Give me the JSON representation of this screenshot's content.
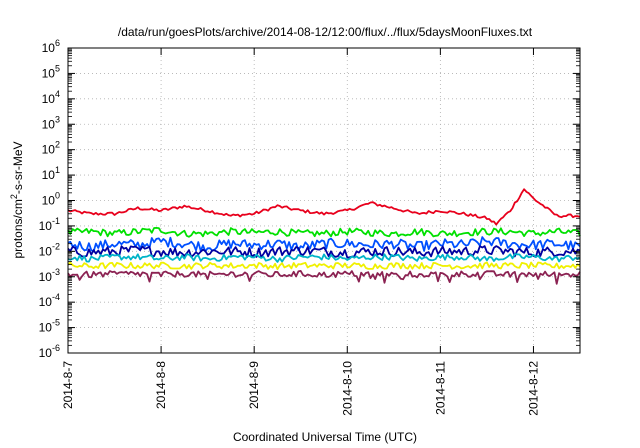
{
  "chart_data": {
    "type": "line",
    "title": "/data/run/goesPlots/archive/2014-08-12/12:00/flux/../flux/5daysMoonFluxes.txt",
    "xlabel": "Coordinated Universal Time (UTC)",
    "ylabel": {
      "prefix": "protons/cm",
      "sup": "2",
      "suffix": "-s-sr-MeV"
    },
    "y_scale": "log",
    "y_exponent_range": [
      -6,
      6
    ],
    "y_ticks": [
      {
        "base": "10",
        "exp": "-6"
      },
      {
        "base": "10",
        "exp": "-5"
      },
      {
        "base": "10",
        "exp": "-4"
      },
      {
        "base": "10",
        "exp": "-3"
      },
      {
        "base": "10",
        "exp": "-2"
      },
      {
        "base": "10",
        "exp": "-1"
      },
      {
        "base": "10",
        "exp": "0"
      },
      {
        "base": "10",
        "exp": "1"
      },
      {
        "base": "10",
        "exp": "2"
      },
      {
        "base": "10",
        "exp": "3"
      },
      {
        "base": "10",
        "exp": "4"
      },
      {
        "base": "10",
        "exp": "5"
      },
      {
        "base": "10",
        "exp": "6"
      }
    ],
    "x_range_days": [
      "2014-08-07",
      "2014-08-12 12:00"
    ],
    "x_ticks": [
      "2014-8-7",
      "2014-8-8",
      "2014-8-9",
      "2014-8-10",
      "2014-8-11",
      "2014-8-12"
    ],
    "grid": true,
    "legend": "none",
    "series": [
      {
        "color": "#e8001c",
        "x_days": [
          0,
          0.25,
          0.5,
          0.75,
          1.0,
          1.25,
          1.5,
          1.75,
          2.0,
          2.25,
          2.5,
          2.75,
          3.0,
          3.25,
          3.5,
          3.75,
          4.0,
          4.25,
          4.5,
          4.6,
          4.75,
          4.9,
          5.0,
          5.25,
          5.5
        ],
        "values": [
          0.4,
          0.3,
          0.3,
          0.5,
          0.4,
          0.6,
          0.4,
          0.25,
          0.3,
          0.6,
          0.4,
          0.3,
          0.4,
          0.8,
          0.5,
          0.3,
          0.4,
          0.3,
          0.2,
          0.12,
          0.4,
          2.8,
          1.2,
          0.25,
          0.25
        ]
      },
      {
        "color": "#00e000",
        "x_days": [
          0,
          0.25,
          0.5,
          0.75,
          1.0,
          1.25,
          1.5,
          1.75,
          2.0,
          2.25,
          2.5,
          2.75,
          3.0,
          3.25,
          3.5,
          3.75,
          4.0,
          4.25,
          4.5,
          4.75,
          5.0,
          5.25,
          5.5
        ],
        "values": [
          0.055,
          0.06,
          0.05,
          0.06,
          0.07,
          0.05,
          0.05,
          0.06,
          0.055,
          0.06,
          0.05,
          0.05,
          0.06,
          0.055,
          0.05,
          0.06,
          0.05,
          0.055,
          0.06,
          0.06,
          0.05,
          0.06,
          0.05
        ]
      },
      {
        "color": "#0050ff",
        "x_days": [
          0,
          0.25,
          0.5,
          0.75,
          1.0,
          1.25,
          1.5,
          1.75,
          2.0,
          2.25,
          2.5,
          2.75,
          3.0,
          3.25,
          3.5,
          3.75,
          4.0,
          4.25,
          4.5,
          4.75,
          5.0,
          5.25,
          5.5
        ],
        "values": [
          0.02,
          0.015,
          0.02,
          0.018,
          0.025,
          0.02,
          0.015,
          0.02,
          0.018,
          0.02,
          0.015,
          0.02,
          0.02,
          0.018,
          0.02,
          0.015,
          0.02,
          0.018,
          0.025,
          0.02,
          0.018,
          0.02,
          0.015
        ]
      },
      {
        "color": "#0000a0",
        "x_days": [
          0,
          0.25,
          0.5,
          0.75,
          1.0,
          1.25,
          1.5,
          1.75,
          2.0,
          2.25,
          2.5,
          2.75,
          3.0,
          3.25,
          3.5,
          3.75,
          4.0,
          4.25,
          4.5,
          4.75,
          5.0,
          5.25,
          5.5
        ],
        "values": [
          0.01,
          0.009,
          0.01,
          0.011,
          0.01,
          0.009,
          0.01,
          0.01,
          0.009,
          0.01,
          0.011,
          0.01,
          0.009,
          0.01,
          0.01,
          0.009,
          0.01,
          0.01,
          0.011,
          0.01,
          0.009,
          0.01,
          0.01
        ]
      },
      {
        "color": "#00b4c8",
        "x_days": [
          0,
          0.25,
          0.5,
          0.75,
          1.0,
          1.25,
          1.5,
          1.75,
          2.0,
          2.25,
          2.5,
          2.75,
          3.0,
          3.25,
          3.5,
          3.75,
          4.0,
          4.25,
          4.5,
          4.75,
          5.0,
          5.25,
          5.5
        ],
        "values": [
          0.006,
          0.005,
          0.006,
          0.006,
          0.005,
          0.006,
          0.005,
          0.006,
          0.006,
          0.005,
          0.006,
          0.006,
          0.005,
          0.006,
          0.006,
          0.005,
          0.006,
          0.006,
          0.005,
          0.006,
          0.006,
          0.005,
          0.006
        ]
      },
      {
        "color": "#f0f000",
        "x_days": [
          0,
          0.25,
          0.5,
          0.75,
          1.0,
          1.25,
          1.5,
          1.75,
          2.0,
          2.25,
          2.5,
          2.75,
          3.0,
          3.25,
          3.5,
          3.75,
          4.0,
          4.25,
          4.5,
          4.75,
          5.0,
          5.25,
          5.5
        ],
        "values": [
          0.0028,
          0.0026,
          0.0028,
          0.0027,
          0.0028,
          0.0026,
          0.0028,
          0.0027,
          0.0028,
          0.0026,
          0.0028,
          0.0027,
          0.0028,
          0.0026,
          0.0028,
          0.0027,
          0.0028,
          0.0026,
          0.0028,
          0.0027,
          0.0028,
          0.0026,
          0.0028
        ]
      },
      {
        "color": "#8b2252",
        "x_days": [
          0,
          0.25,
          0.5,
          0.75,
          1.0,
          1.25,
          1.5,
          1.75,
          2.0,
          2.25,
          2.5,
          2.75,
          3.0,
          3.25,
          3.5,
          3.75,
          4.0,
          4.25,
          4.5,
          4.75,
          5.0,
          5.25,
          5.5
        ],
        "values": [
          0.0013,
          0.0012,
          0.0013,
          0.0013,
          0.0012,
          0.0013,
          0.0012,
          0.0013,
          0.0013,
          0.0012,
          0.0013,
          0.0012,
          0.0013,
          0.0013,
          0.0012,
          0.0013,
          0.0012,
          0.0013,
          0.0013,
          0.0012,
          0.0013,
          0.0012,
          0.0013
        ]
      }
    ]
  }
}
